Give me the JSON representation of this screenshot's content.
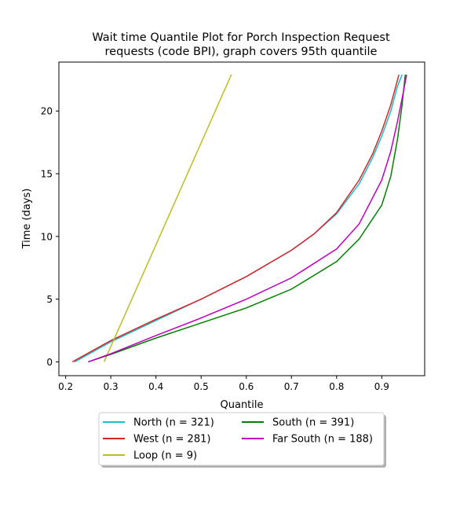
{
  "chart_data": {
    "type": "line",
    "title_lines": [
      "Wait time Quantile Plot for Porch Inspection Request",
      "requests (code BPI), graph covers 95th quantile"
    ],
    "xlabel": "Quantile",
    "ylabel": "Time (days)",
    "xlim": [
      0.185,
      0.995
    ],
    "ylim": [
      -1.1,
      23.9
    ],
    "xticks": [
      0.2,
      0.3,
      0.4,
      0.5,
      0.6,
      0.7,
      0.8,
      0.9
    ],
    "xtick_labels": [
      "0.2",
      "0.3",
      "0.4",
      "0.5",
      "0.6",
      "0.7",
      "0.8",
      "0.9"
    ],
    "yticks": [
      0,
      5,
      10,
      15,
      20
    ],
    "ytick_labels": [
      "0",
      "5",
      "10",
      "15",
      "20"
    ],
    "grid": false,
    "legend_position": "below",
    "series": [
      {
        "name": "North (n = 321)",
        "color": "#17becf",
        "points": [
          [
            0.22,
            0
          ],
          [
            0.3,
            1.6
          ],
          [
            0.4,
            3.3
          ],
          [
            0.5,
            5.0
          ],
          [
            0.6,
            6.8
          ],
          [
            0.7,
            8.9
          ],
          [
            0.75,
            10.2
          ],
          [
            0.8,
            11.8
          ],
          [
            0.85,
            14.2
          ],
          [
            0.88,
            16.3
          ],
          [
            0.9,
            18.0
          ],
          [
            0.92,
            20.0
          ],
          [
            0.935,
            22.0
          ],
          [
            0.945,
            22.9
          ]
        ]
      },
      {
        "name": "West (n = 281)",
        "color": "#d62728",
        "points": [
          [
            0.215,
            0
          ],
          [
            0.3,
            1.7
          ],
          [
            0.4,
            3.4
          ],
          [
            0.5,
            5.0
          ],
          [
            0.6,
            6.8
          ],
          [
            0.7,
            8.9
          ],
          [
            0.75,
            10.2
          ],
          [
            0.8,
            11.9
          ],
          [
            0.85,
            14.5
          ],
          [
            0.88,
            16.6
          ],
          [
            0.9,
            18.4
          ],
          [
            0.92,
            20.5
          ],
          [
            0.938,
            22.9
          ]
        ]
      },
      {
        "name": "Loop (n = 9)",
        "color": "#bcbd22",
        "points": [
          [
            0.285,
            0
          ],
          [
            0.567,
            22.9
          ]
        ]
      },
      {
        "name": "South (n = 391)",
        "color": "#008000",
        "points": [
          [
            0.25,
            0
          ],
          [
            0.3,
            0.6
          ],
          [
            0.4,
            1.9
          ],
          [
            0.5,
            3.1
          ],
          [
            0.6,
            4.3
          ],
          [
            0.7,
            5.8
          ],
          [
            0.8,
            8.0
          ],
          [
            0.85,
            9.8
          ],
          [
            0.9,
            12.5
          ],
          [
            0.92,
            14.8
          ],
          [
            0.935,
            17.8
          ],
          [
            0.945,
            20.5
          ],
          [
            0.952,
            22.9
          ]
        ]
      },
      {
        "name": "Far South (n = 188)",
        "color": "#bf00bf",
        "points": [
          [
            0.25,
            0
          ],
          [
            0.3,
            0.65
          ],
          [
            0.4,
            2.1
          ],
          [
            0.5,
            3.5
          ],
          [
            0.6,
            5.0
          ],
          [
            0.7,
            6.7
          ],
          [
            0.8,
            9.0
          ],
          [
            0.85,
            11.0
          ],
          [
            0.9,
            14.5
          ],
          [
            0.92,
            16.8
          ],
          [
            0.935,
            19.2
          ],
          [
            0.945,
            21.0
          ],
          [
            0.955,
            22.9
          ]
        ]
      }
    ]
  }
}
